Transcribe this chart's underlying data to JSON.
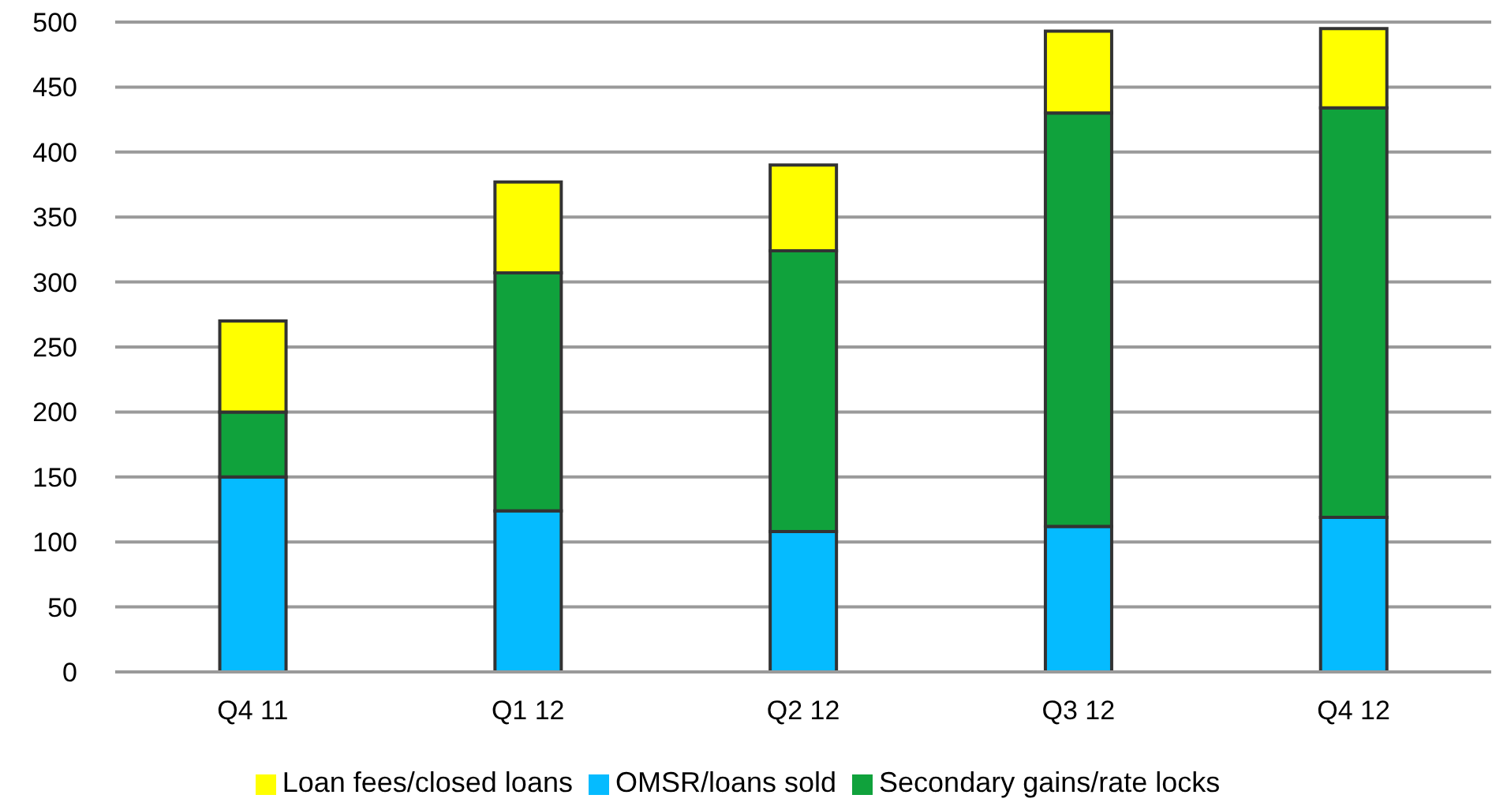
{
  "chart_data": {
    "type": "bar",
    "stacked": true,
    "categories": [
      "Q4 11",
      "Q1 12",
      "Q2 12",
      "Q3 12",
      "Q4 12"
    ],
    "series": [
      {
        "name": "OMSR/loans sold",
        "color": "#05bbff",
        "values": [
          150,
          124,
          108,
          112,
          119
        ]
      },
      {
        "name": "Secondary gains/rate locks",
        "color": "#10a23c",
        "values": [
          50,
          183,
          216,
          318,
          315
        ]
      },
      {
        "name": "Loan fees/closed loans",
        "color": "#ffff00",
        "values": [
          70,
          70,
          66,
          63,
          61
        ]
      }
    ],
    "ylim": [
      0,
      500
    ],
    "yticks": [
      0,
      50,
      100,
      150,
      200,
      250,
      300,
      350,
      400,
      450,
      500
    ],
    "grid": "y",
    "legend": "bottom"
  }
}
